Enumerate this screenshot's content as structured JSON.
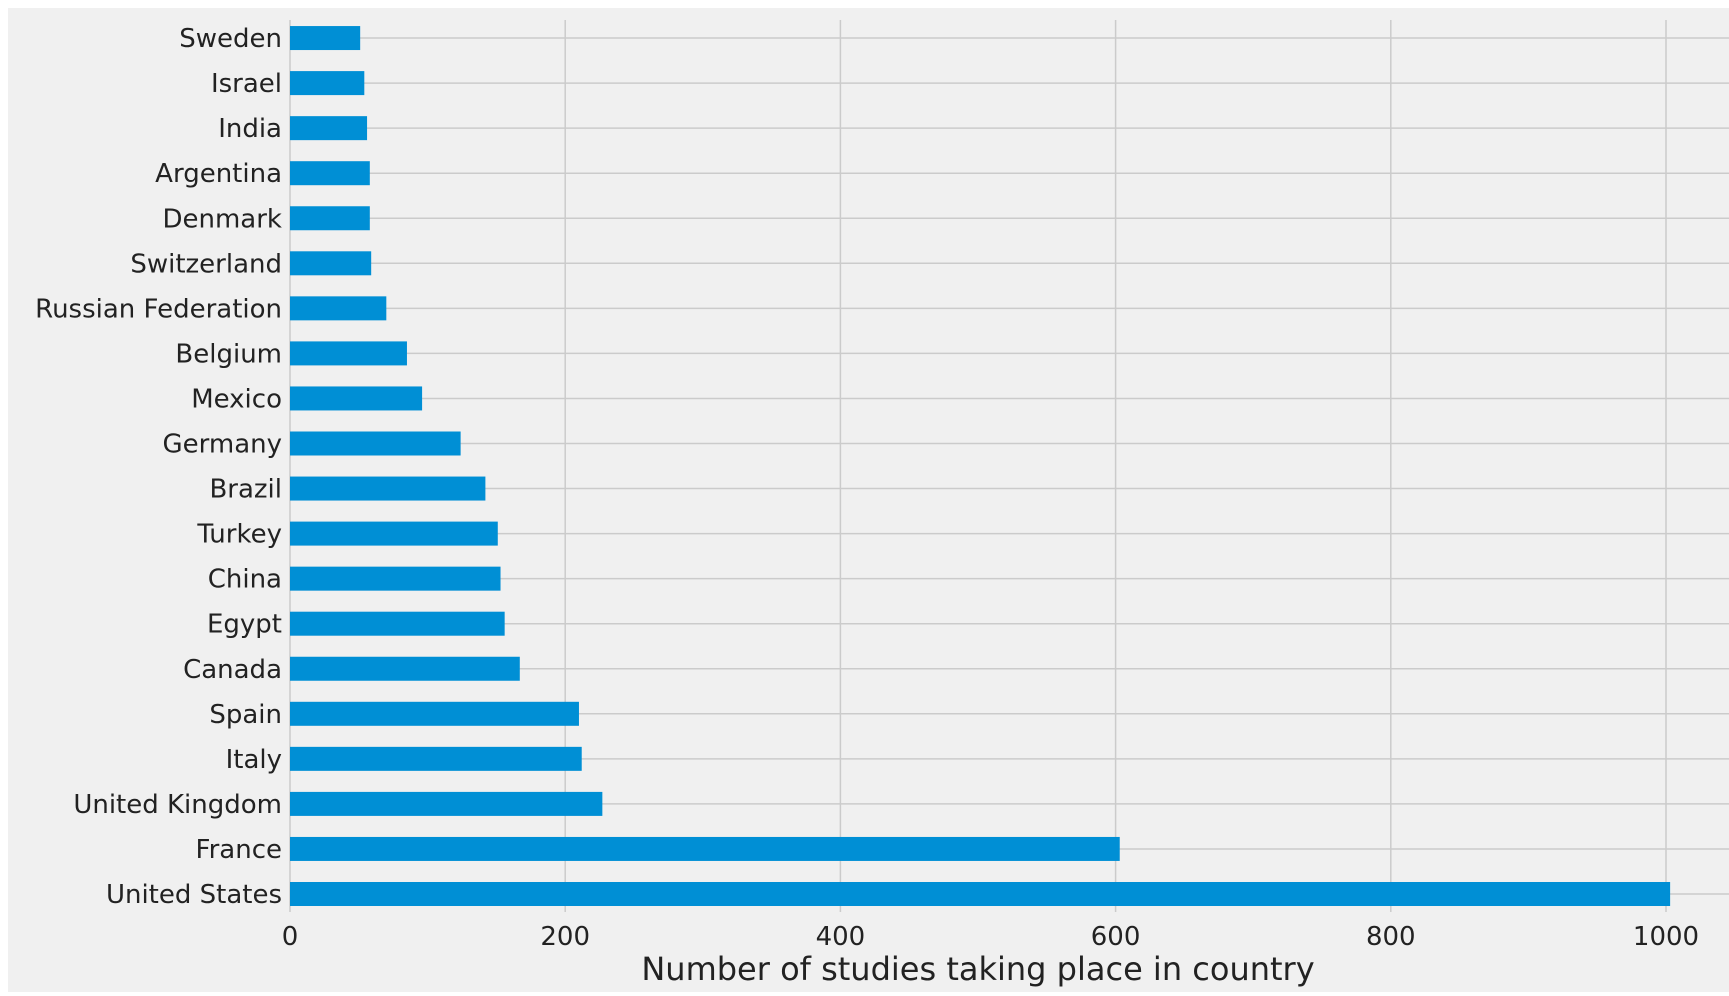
{
  "chart_data": {
    "type": "bar",
    "orientation": "horizontal",
    "categories": [
      "United States",
      "France",
      "United Kingdom",
      "Italy",
      "Spain",
      "Canada",
      "Egypt",
      "China",
      "Turkey",
      "Brazil",
      "Germany",
      "Mexico",
      "Belgium",
      "Russian Federation",
      "Switzerland",
      "Denmark",
      "Argentina",
      "India",
      "Israel",
      "Sweden"
    ],
    "values": [
      1003,
      603,
      227,
      212,
      210,
      167,
      156,
      153,
      151,
      142,
      124,
      96,
      85,
      70,
      59,
      58,
      58,
      56,
      54,
      51
    ],
    "title": "",
    "xlabel": "Number of studies taking place in country",
    "ylabel": "",
    "xlim": [
      0,
      1000
    ],
    "xticks": [
      0,
      200,
      400,
      600,
      800,
      1000
    ],
    "grid": true,
    "legend": "none",
    "colors": {
      "bar": "#008fd5",
      "figure_background": "#f0f0f0",
      "grid": "#cbcbcb",
      "text": "#222222"
    }
  }
}
